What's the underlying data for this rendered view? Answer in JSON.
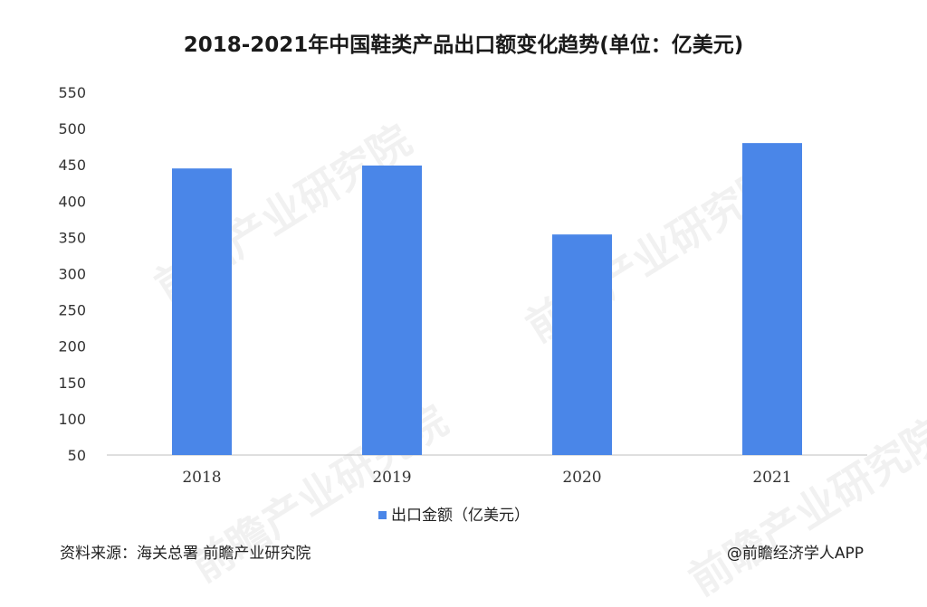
{
  "chart_data": {
    "type": "bar",
    "title": "2018-2021年中国鞋类产品出口额变化趋势(单位：亿美元)",
    "categories": [
      "2018",
      "2019",
      "2020",
      "2021"
    ],
    "series": [
      {
        "name": "出口金额（亿美元）",
        "values": [
          445,
          449,
          354,
          480
        ],
        "color": "#4a86e8"
      }
    ],
    "ylim": [
      50,
      550
    ],
    "yticks": [
      50,
      100,
      150,
      200,
      250,
      300,
      350,
      400,
      450,
      500,
      550
    ],
    "grid": false,
    "legend_position": "bottom"
  },
  "watermark": "前瞻产业研究院",
  "footer": {
    "source": "资料来源：海关总署 前瞻产业研究院",
    "credit": "@前瞻经济学人APP"
  }
}
